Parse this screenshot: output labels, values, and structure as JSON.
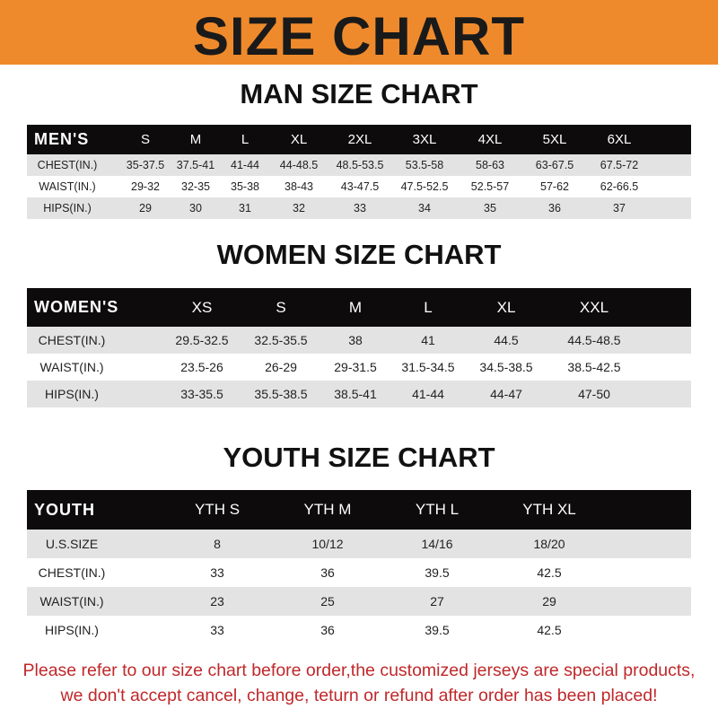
{
  "title": "SIZE CHART",
  "colors": {
    "banner": "#ef8a2c",
    "header_bg": "#0d0b0b",
    "stripe": "#e3e3e3",
    "note": "#c0282a"
  },
  "men": {
    "title": "MAN SIZE CHART",
    "header": [
      "MEN'S",
      "S",
      "M",
      "L",
      "XL",
      "2XL",
      "3XL",
      "4XL",
      "5XL",
      "6XL"
    ],
    "rows": [
      [
        "CHEST(IN.)",
        "35-37.5",
        "37.5-41",
        "41-44",
        "44-48.5",
        "48.5-53.5",
        "53.5-58",
        "58-63",
        "63-67.5",
        "67.5-72"
      ],
      [
        "WAIST(IN.)",
        "29-32",
        "32-35",
        "35-38",
        "38-43",
        "43-47.5",
        "47.5-52.5",
        "52.5-57",
        "57-62",
        "62-66.5"
      ],
      [
        "HIPS(IN.)",
        "29",
        "30",
        "31",
        "32",
        "33",
        "34",
        "35",
        "36",
        "37"
      ]
    ]
  },
  "women": {
    "title": "WOMEN SIZE CHART",
    "header": [
      "WOMEN'S",
      "XS",
      "S",
      "M",
      "L",
      "XL",
      "XXL"
    ],
    "rows": [
      [
        "CHEST(IN.)",
        "29.5-32.5",
        "32.5-35.5",
        "38",
        "41",
        "44.5",
        "44.5-48.5"
      ],
      [
        "WAIST(IN.)",
        "23.5-26",
        "26-29",
        "29-31.5",
        "31.5-34.5",
        "34.5-38.5",
        "38.5-42.5"
      ],
      [
        "HIPS(IN.)",
        "33-35.5",
        "35.5-38.5",
        "38.5-41",
        "41-44",
        "44-47",
        "47-50"
      ]
    ]
  },
  "youth": {
    "title": "YOUTH SIZE CHART",
    "header": [
      "YOUTH",
      "YTH S",
      "YTH M",
      "YTH L",
      "YTH XL"
    ],
    "rows": [
      [
        "U.S.SIZE",
        "8",
        "10/12",
        "14/16",
        "18/20"
      ],
      [
        "CHEST(IN.)",
        "33",
        "36",
        "39.5",
        "42.5"
      ],
      [
        "WAIST(IN.)",
        "23",
        "25",
        "27",
        "29"
      ],
      [
        "HIPS(IN.)",
        "33",
        "36",
        "39.5",
        "42.5"
      ]
    ]
  },
  "note": {
    "line1": "Please refer to our size chart before order,the customized jerseys are special products,",
    "line2": "we don't accept cancel, change, teturn or refund after order has been placed!"
  }
}
